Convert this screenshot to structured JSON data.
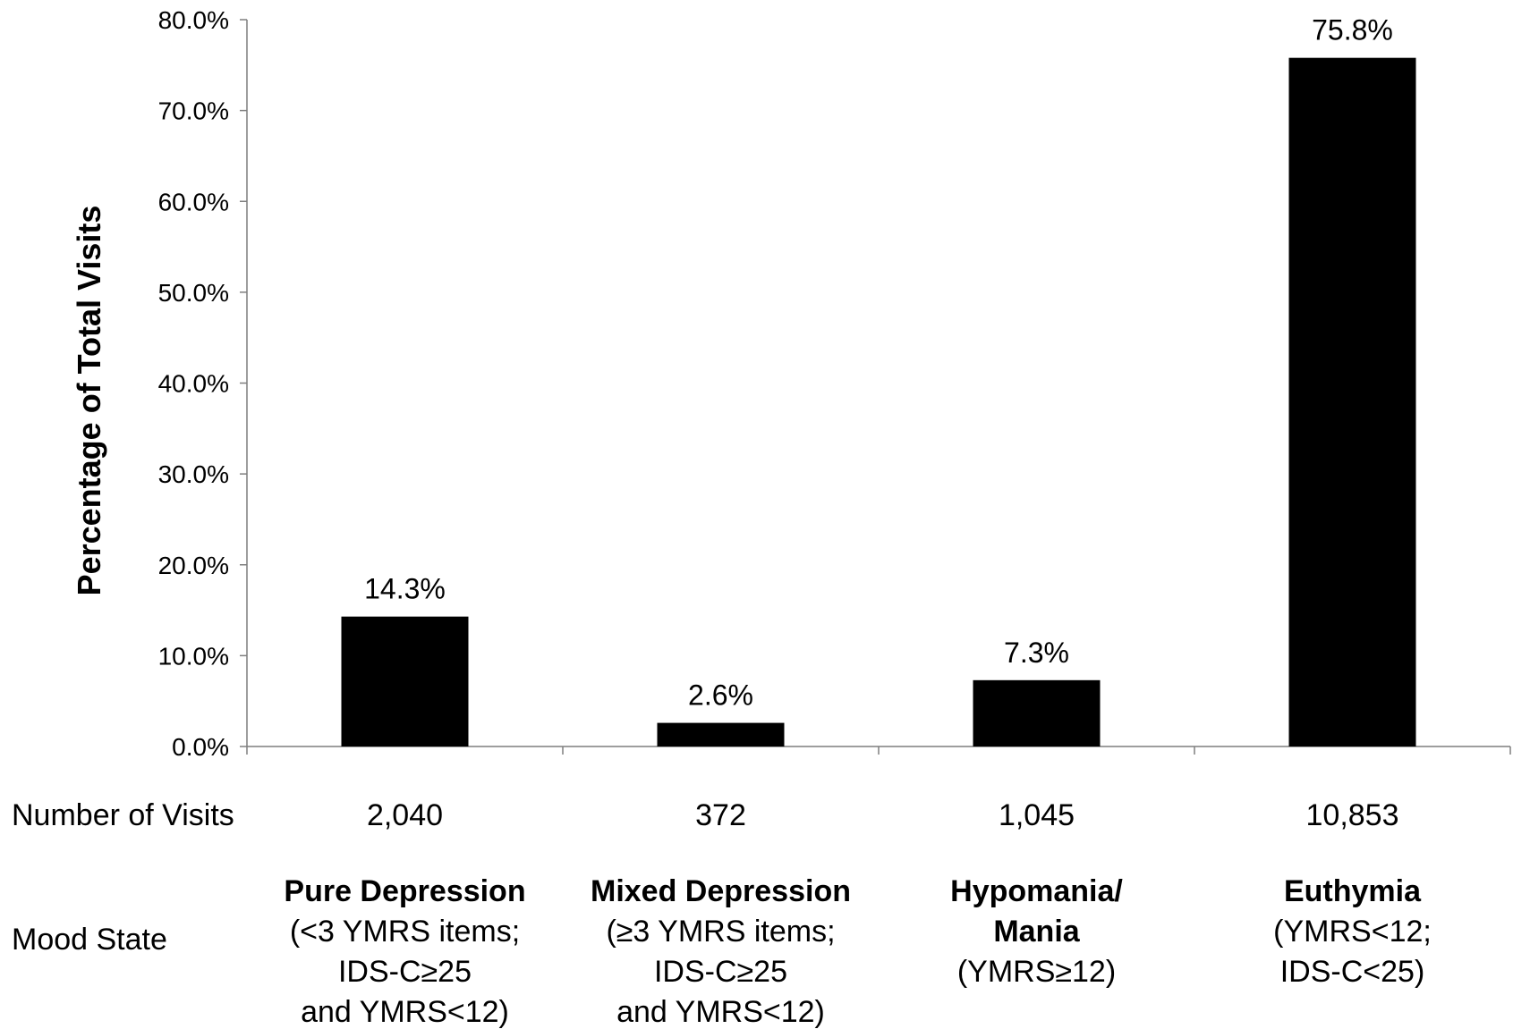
{
  "chart_data": {
    "type": "bar",
    "ylabel": "Percentage of Total Visits",
    "ylim": [
      0,
      80
    ],
    "yticks": [
      "0.0%",
      "10.0%",
      "20.0%",
      "30.0%",
      "40.0%",
      "50.0%",
      "60.0%",
      "70.0%",
      "80.0%"
    ],
    "categories": [
      "Pure Depression",
      "Mixed Depression",
      "Hypomania/ Mania",
      "Euthymia"
    ],
    "values": [
      14.3,
      2.6,
      7.3,
      75.8
    ],
    "data_labels": [
      "14.3%",
      "2.6%",
      "7.3%",
      "75.8%"
    ],
    "bar_color": "#000000",
    "grid": false,
    "legend": "none"
  },
  "table_rows": {
    "visits": {
      "label": "Number of Visits",
      "values": [
        "2,040",
        "372",
        "1,045",
        "10,853"
      ]
    },
    "mood": {
      "label": "Mood State",
      "entries": [
        {
          "title_lines": [
            "Pure Depression"
          ],
          "detail_lines": [
            "(<3 YMRS items;",
            "IDS-C≥25",
            "and YMRS<12)"
          ]
        },
        {
          "title_lines": [
            "Mixed Depression"
          ],
          "detail_lines": [
            "(≥3 YMRS items;",
            "IDS-C≥25",
            "and YMRS<12)"
          ]
        },
        {
          "title_lines": [
            "Hypomania/",
            "Mania"
          ],
          "detail_lines": [
            "(YMRS≥12)"
          ]
        },
        {
          "title_lines": [
            "Euthymia"
          ],
          "detail_lines": [
            "(YMRS<12;",
            "IDS-C<25)"
          ]
        }
      ]
    }
  }
}
